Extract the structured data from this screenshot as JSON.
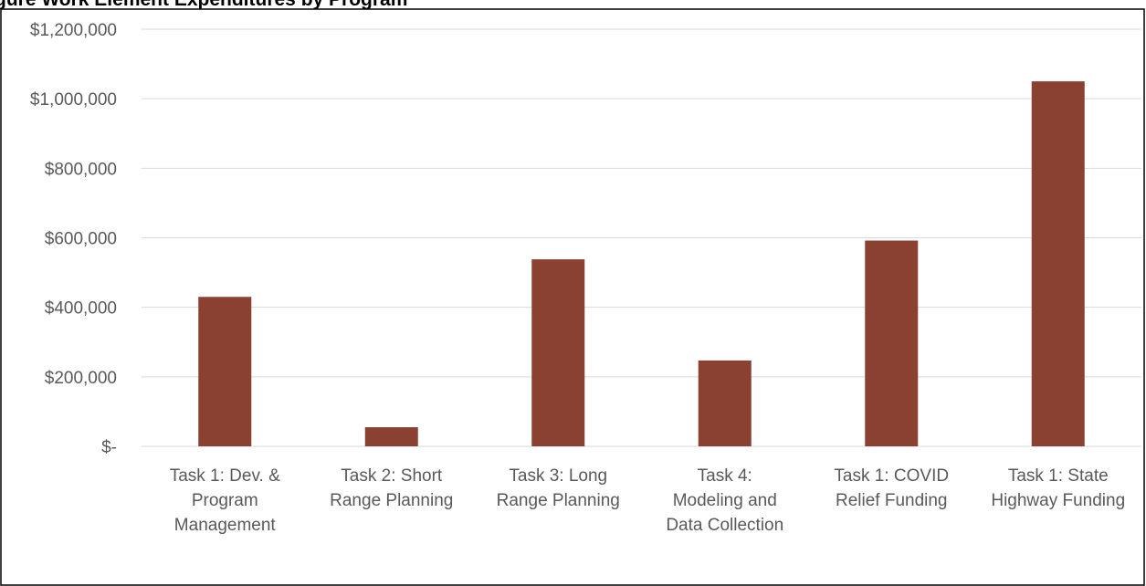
{
  "header": {
    "title_fragment": "gure     Work Element Expenditures by Program"
  },
  "chart_data": {
    "type": "bar",
    "categories": [
      "Task 1:  Dev. & Program Management",
      "Task 2:  Short Range Planning",
      "Task 3:  Long Range Planning",
      "Task 4:  Modeling and Data Collection",
      "Task 1:  COVID Relief Funding",
      "Task 1:  State Highway Funding"
    ],
    "category_lines": [
      [
        "Task 1:  Dev. &",
        "Program",
        "Management"
      ],
      [
        "Task 2:  Short",
        "Range Planning"
      ],
      [
        "Task 3:  Long",
        "Range Planning"
      ],
      [
        "Task 4:",
        "Modeling and",
        "Data Collection"
      ],
      [
        "Task 1:  COVID",
        "Relief Funding"
      ],
      [
        "Task 1:  State",
        "Highway Funding"
      ]
    ],
    "values": [
      430000,
      55000,
      538000,
      247000,
      592000,
      1050000
    ],
    "ylim": [
      0,
      1200000
    ],
    "yticks": [
      0,
      200000,
      400000,
      600000,
      800000,
      1000000,
      1200000
    ],
    "ytick_labels": [
      "$-",
      "$200,000",
      "$400,000",
      "$600,000",
      "$800,000",
      "$1,000,000",
      "$1,200,000"
    ],
    "bar_color": "#8b4132",
    "grid": true,
    "legend": "none",
    "title": "",
    "xlabel": "",
    "ylabel": ""
  }
}
